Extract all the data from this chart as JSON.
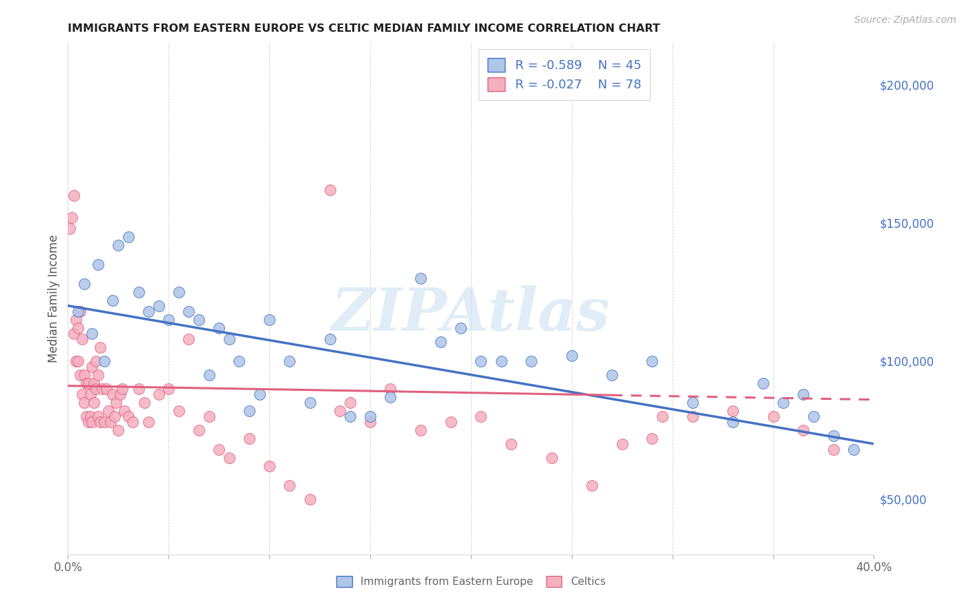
{
  "title": "IMMIGRANTS FROM EASTERN EUROPE VS CELTIC MEDIAN FAMILY INCOME CORRELATION CHART",
  "source": "Source: ZipAtlas.com",
  "ylabel": "Median Family Income",
  "xlim": [
    0.0,
    0.4
  ],
  "ylim": [
    30000,
    215000
  ],
  "xticks": [
    0.0,
    0.05,
    0.1,
    0.15,
    0.2,
    0.25,
    0.3,
    0.35,
    0.4
  ],
  "xticklabels": [
    "0.0%",
    "",
    "",
    "",
    "",
    "",
    "",
    "",
    "40.0%"
  ],
  "yticks_right": [
    50000,
    100000,
    150000,
    200000
  ],
  "ytick_right_labels": [
    "$50,000",
    "$100,000",
    "$150,000",
    "$200,000"
  ],
  "right_axis_color": "#4472c4",
  "blue_fill": "#aec6e8",
  "blue_edge": "#4472c4",
  "pink_fill": "#f5b0c0",
  "pink_edge": "#e06080",
  "blue_line_color": "#4472c4",
  "pink_line_color": "#e06080",
  "legend_R_blue": "-0.589",
  "legend_N_blue": "45",
  "legend_R_pink": "-0.027",
  "legend_N_pink": "78",
  "watermark": "ZIPAtlas",
  "blue_x": [
    0.005,
    0.008,
    0.012,
    0.015,
    0.018,
    0.022,
    0.025,
    0.03,
    0.035,
    0.04,
    0.045,
    0.05,
    0.055,
    0.06,
    0.065,
    0.07,
    0.075,
    0.08,
    0.085,
    0.09,
    0.095,
    0.1,
    0.11,
    0.12,
    0.13,
    0.14,
    0.15,
    0.16,
    0.175,
    0.185,
    0.195,
    0.205,
    0.215,
    0.23,
    0.25,
    0.27,
    0.29,
    0.31,
    0.33,
    0.345,
    0.355,
    0.365,
    0.37,
    0.38,
    0.39
  ],
  "blue_y": [
    118000,
    128000,
    110000,
    135000,
    100000,
    122000,
    142000,
    145000,
    125000,
    118000,
    120000,
    115000,
    125000,
    118000,
    115000,
    95000,
    112000,
    108000,
    100000,
    82000,
    88000,
    115000,
    100000,
    85000,
    108000,
    80000,
    80000,
    87000,
    130000,
    107000,
    112000,
    100000,
    100000,
    100000,
    102000,
    95000,
    100000,
    85000,
    78000,
    92000,
    85000,
    88000,
    80000,
    73000,
    68000
  ],
  "pink_x": [
    0.001,
    0.002,
    0.003,
    0.003,
    0.004,
    0.004,
    0.005,
    0.005,
    0.006,
    0.006,
    0.007,
    0.007,
    0.008,
    0.008,
    0.009,
    0.009,
    0.01,
    0.01,
    0.011,
    0.011,
    0.012,
    0.012,
    0.013,
    0.013,
    0.014,
    0.014,
    0.015,
    0.015,
    0.016,
    0.016,
    0.017,
    0.018,
    0.019,
    0.02,
    0.021,
    0.022,
    0.023,
    0.024,
    0.025,
    0.026,
    0.027,
    0.028,
    0.03,
    0.032,
    0.035,
    0.038,
    0.04,
    0.045,
    0.05,
    0.055,
    0.06,
    0.065,
    0.07,
    0.075,
    0.08,
    0.09,
    0.1,
    0.11,
    0.12,
    0.13,
    0.14,
    0.15,
    0.16,
    0.175,
    0.19,
    0.205,
    0.22,
    0.24,
    0.26,
    0.275,
    0.29,
    0.31,
    0.33,
    0.35,
    0.365,
    0.38,
    0.295,
    0.135
  ],
  "pink_y": [
    148000,
    152000,
    160000,
    110000,
    115000,
    100000,
    100000,
    112000,
    95000,
    118000,
    88000,
    108000,
    85000,
    95000,
    80000,
    92000,
    78000,
    92000,
    80000,
    88000,
    78000,
    98000,
    92000,
    85000,
    100000,
    90000,
    80000,
    95000,
    78000,
    105000,
    90000,
    78000,
    90000,
    82000,
    78000,
    88000,
    80000,
    85000,
    75000,
    88000,
    90000,
    82000,
    80000,
    78000,
    90000,
    85000,
    78000,
    88000,
    90000,
    82000,
    108000,
    75000,
    80000,
    68000,
    65000,
    72000,
    62000,
    55000,
    50000,
    162000,
    85000,
    78000,
    90000,
    75000,
    78000,
    80000,
    70000,
    65000,
    55000,
    70000,
    72000,
    80000,
    82000,
    80000,
    75000,
    68000,
    80000,
    82000
  ]
}
